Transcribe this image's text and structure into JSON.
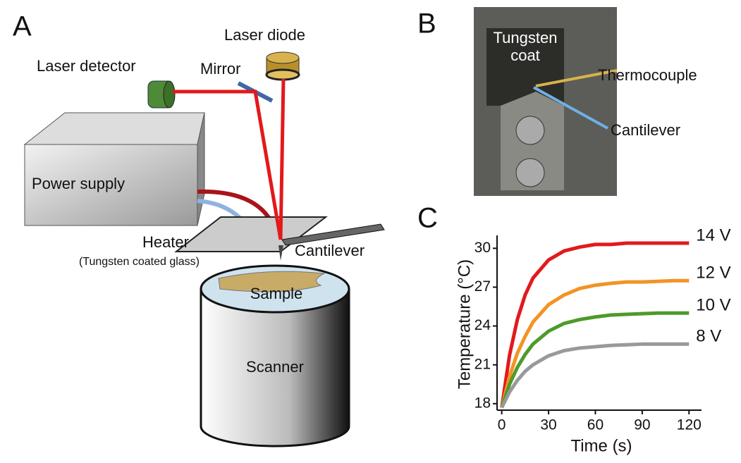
{
  "panels": {
    "a": {
      "label": "A",
      "laser_detector": "Laser detector",
      "laser_diode": "Laser diode",
      "mirror": "Mirror",
      "power_supply": "Power supply",
      "heater": "Heater",
      "heater_note": "(Tungsten coated glass)",
      "cantilever": "Cantilever",
      "sample": "Sample",
      "scanner": "Scanner"
    },
    "b": {
      "label": "B",
      "coat_line1": "Tungsten",
      "coat_line2": "coat",
      "thermocouple": "Thermocouple",
      "cantilever": "Cantilever"
    },
    "c": {
      "label": "C"
    }
  },
  "chart_data": {
    "type": "line",
    "x_label": "Time (s)",
    "y_label": "Temperature (°C)",
    "x": [
      0,
      5,
      10,
      15,
      20,
      30,
      40,
      50,
      60,
      70,
      80,
      90,
      100,
      110,
      120
    ],
    "series": [
      {
        "name": "14 V",
        "color": "#e3191c",
        "values": [
          17.7,
          21.75,
          24.5,
          26.4,
          27.7,
          29.1,
          29.8,
          30.1,
          30.3,
          30.3,
          30.4,
          30.4,
          30.4,
          30.4,
          30.4
        ]
      },
      {
        "name": "12 V",
        "color": "#f39325",
        "values": [
          17.7,
          20.1,
          21.9,
          23.2,
          24.3,
          25.65,
          26.4,
          26.9,
          27.15,
          27.3,
          27.4,
          27.4,
          27.45,
          27.5,
          27.5
        ]
      },
      {
        "name": "10 V",
        "color": "#4e9a2b",
        "values": [
          17.7,
          19.5,
          20.8,
          21.8,
          22.6,
          23.6,
          24.2,
          24.5,
          24.7,
          24.85,
          24.9,
          24.95,
          25.0,
          25.0,
          25.0
        ]
      },
      {
        "name": "8 V",
        "color": "#999999",
        "values": [
          17.7,
          18.9,
          19.8,
          20.5,
          21.0,
          21.7,
          22.1,
          22.3,
          22.4,
          22.5,
          22.55,
          22.6,
          22.6,
          22.6,
          22.6
        ]
      }
    ],
    "xlim": [
      -3,
      128
    ],
    "ylim": [
      17.5,
      31
    ],
    "xticks": [
      0,
      30,
      60,
      90,
      120
    ],
    "yticks": [
      18,
      21,
      24,
      27,
      30
    ]
  }
}
